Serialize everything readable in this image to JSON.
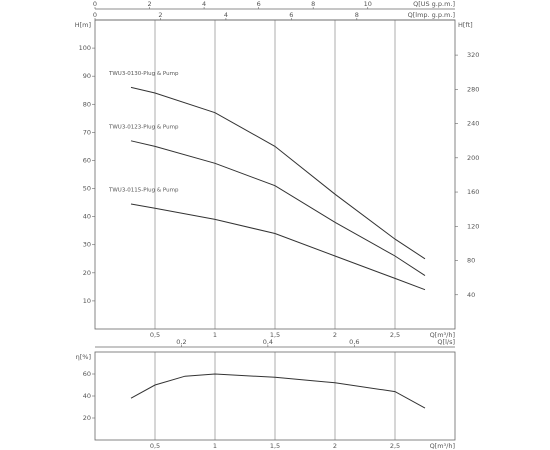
{
  "chart_data": [
    {
      "type": "line",
      "x_label": "Q[m³/h]",
      "y_label": "H[m]",
      "y2_label": "H[ft]",
      "xlim": [
        0,
        3
      ],
      "xticks": [
        {
          "value": 0.5,
          "label": "0,5"
        },
        1,
        {
          "value": 1.5,
          "label": "1,5"
        },
        2,
        {
          "value": 2.5,
          "label": "2,5"
        }
      ],
      "ylim": [
        0,
        110
      ],
      "yticks": [
        10,
        20,
        30,
        40,
        50,
        60,
        70,
        80,
        90,
        100
      ],
      "y2lim": [
        0,
        361
      ],
      "y2ticks": [
        40,
        80,
        120,
        160,
        200,
        240,
        280,
        320
      ],
      "top_axes": [
        {
          "label": "Q[US g.p.m.]",
          "xlim": [
            0,
            13.2
          ],
          "xticks": [
            0,
            2,
            4,
            6,
            8,
            10
          ]
        },
        {
          "label": "Q[lmp. g.p.m.]",
          "xlim": [
            0,
            11
          ],
          "xticks": [
            0,
            2,
            4,
            6,
            8
          ]
        }
      ],
      "grid": true,
      "series": [
        {
          "name": "TWU3-0130-Plug & Pump",
          "color": "#333333",
          "x": [
            0.3,
            0.5,
            1,
            1.5,
            2,
            2.5,
            2.75
          ],
          "values": [
            86,
            84,
            77,
            65,
            48,
            32,
            25
          ]
        },
        {
          "name": "TWU3-0123-Plug & Pump",
          "color": "#333333",
          "x": [
            0.3,
            0.5,
            1,
            1.5,
            2,
            2.5,
            2.75
          ],
          "values": [
            67,
            65,
            59,
            51,
            38,
            26,
            19
          ]
        },
        {
          "name": "TWU3-0115-Plug & Pump",
          "color": "#333333",
          "x": [
            0.3,
            0.5,
            1,
            1.5,
            2,
            2.5,
            2.75
          ],
          "values": [
            44.5,
            43,
            39,
            34,
            26,
            18,
            14
          ]
        }
      ]
    },
    {
      "type": "line",
      "x_label": "Q[m³/h]",
      "y_label": "η[%]",
      "xlim": [
        0,
        3
      ],
      "xticks": [
        {
          "value": 0.5,
          "label": "0,5"
        },
        1,
        {
          "value": 1.5,
          "label": "1,5"
        },
        2,
        {
          "value": 2.5,
          "label": "2,5"
        }
      ],
      "ylim": [
        0,
        80
      ],
      "yticks": [
        20,
        40,
        60
      ],
      "top_axes": [
        {
          "label": "Q[l/s]",
          "xlim": [
            0,
            0.833
          ],
          "xticks": [
            {
              "value": 0.2,
              "label": "0,2"
            },
            {
              "value": 0.4,
              "label": "0,4"
            },
            {
              "value": 0.6,
              "label": "0,6"
            }
          ]
        }
      ],
      "grid": true,
      "series": [
        {
          "color": "#333333",
          "x": [
            0.3,
            0.5,
            0.75,
            1,
            1.5,
            2,
            2.5,
            2.75
          ],
          "values": [
            38,
            50,
            58,
            60,
            57,
            52,
            44,
            29
          ]
        }
      ]
    }
  ]
}
